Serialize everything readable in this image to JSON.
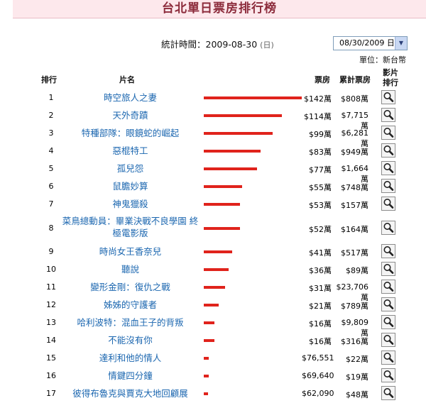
{
  "page_title": "台北單日票房排行榜",
  "stats": {
    "label": "統計時間：",
    "date": "2009-08-30",
    "weekday": "(日)",
    "selected_date": "08/30/2009 日",
    "unit_note": "單位：新台幣"
  },
  "headers": {
    "rank": "排行",
    "title": "片名",
    "daily": "票房",
    "cumulative": "累計票房",
    "detail": "影片排行"
  },
  "accent_color": "#e0231c",
  "link_color": "#1c67b0",
  "rows": [
    {
      "rank": "1",
      "title": "時空旅人之妻",
      "bar": 1.0,
      "daily": "$142萬",
      "cumulative": "$808萬"
    },
    {
      "rank": "2",
      "title": "天外奇蹟",
      "bar": 0.8,
      "daily": "$114萬",
      "cumulative": "$7,715萬"
    },
    {
      "rank": "3",
      "title": "特種部隊：眼鏡蛇的崛起",
      "bar": 0.7,
      "daily": "$99萬",
      "cumulative": "$6,281萬"
    },
    {
      "rank": "4",
      "title": "惡棍特工",
      "bar": 0.58,
      "daily": "$83萬",
      "cumulative": "$949萬"
    },
    {
      "rank": "5",
      "title": "孤兒怨",
      "bar": 0.54,
      "daily": "$77萬",
      "cumulative": "$1,664萬"
    },
    {
      "rank": "6",
      "title": "鼠膽妙算",
      "bar": 0.39,
      "daily": "$55萬",
      "cumulative": "$748萬"
    },
    {
      "rank": "7",
      "title": "神鬼獵殺",
      "bar": 0.37,
      "daily": "$53萬",
      "cumulative": "$157萬"
    },
    {
      "rank": "8",
      "title": "菜鳥總動員：畢業決戰不良學園 終極電影版",
      "bar": 0.37,
      "daily": "$52萬",
      "cumulative": "$164萬"
    },
    {
      "rank": "9",
      "title": "時尚女王香奈兒",
      "bar": 0.29,
      "daily": "$41萬",
      "cumulative": "$517萬"
    },
    {
      "rank": "10",
      "title": "聽說",
      "bar": 0.25,
      "daily": "$36萬",
      "cumulative": "$89萬"
    },
    {
      "rank": "11",
      "title": "變形金剛：復仇之戰",
      "bar": 0.22,
      "daily": "$31萬",
      "cumulative": "$23,706萬"
    },
    {
      "rank": "12",
      "title": "姊姊的守護者",
      "bar": 0.15,
      "daily": "$21萬",
      "cumulative": "$789萬"
    },
    {
      "rank": "13",
      "title": "哈利波特：混血王子的背叛",
      "bar": 0.11,
      "daily": "$16萬",
      "cumulative": "$9,809萬"
    },
    {
      "rank": "14",
      "title": "不能沒有你",
      "bar": 0.11,
      "daily": "$16萬",
      "cumulative": "$316萬"
    },
    {
      "rank": "15",
      "title": "達利和他的情人",
      "bar": 0.05,
      "daily": "$76,551",
      "cumulative": "$22萬"
    },
    {
      "rank": "16",
      "title": "情鍵四分鐘",
      "bar": 0.05,
      "daily": "$69,640",
      "cumulative": "$19萬"
    },
    {
      "rank": "17",
      "title": "彼得布魯克與賈克大地回顧展",
      "bar": 0.04,
      "daily": "$62,090",
      "cumulative": "$48萬"
    }
  ]
}
